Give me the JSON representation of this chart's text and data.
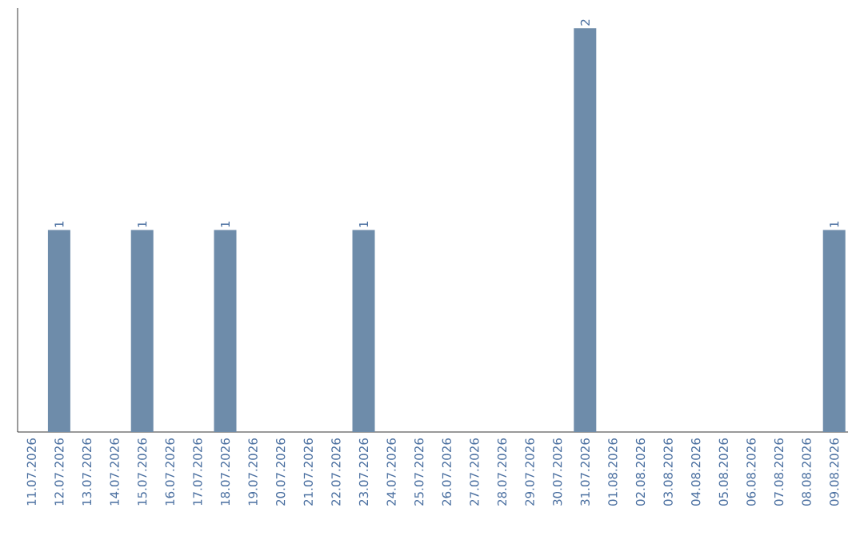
{
  "chart_data": {
    "type": "bar",
    "categories": [
      "11.07.2026",
      "12.07.2026",
      "13.07.2026",
      "14.07.2026",
      "15.07.2026",
      "16.07.2026",
      "17.07.2026",
      "18.07.2026",
      "19.07.2026",
      "20.07.2026",
      "21.07.2026",
      "22.07.2026",
      "23.07.2026",
      "24.07.2026",
      "25.07.2026",
      "26.07.2026",
      "27.07.2026",
      "28.07.2026",
      "29.07.2026",
      "30.07.2026",
      "31.07.2026",
      "01.08.2026",
      "02.08.2026",
      "03.08.2026",
      "04.08.2026",
      "05.08.2026",
      "06.08.2026",
      "07.08.2026",
      "08.08.2026",
      "09.08.2026"
    ],
    "values": [
      0,
      1,
      0,
      0,
      1,
      0,
      0,
      1,
      0,
      0,
      0,
      0,
      1,
      0,
      0,
      0,
      0,
      0,
      0,
      0,
      2,
      0,
      0,
      0,
      0,
      0,
      0,
      0,
      0,
      1
    ],
    "value_labels": [
      null,
      "1",
      null,
      null,
      "1",
      null,
      null,
      "1",
      null,
      null,
      null,
      null,
      "1",
      null,
      null,
      null,
      null,
      null,
      null,
      null,
      "2",
      null,
      null,
      null,
      null,
      null,
      null,
      null,
      null,
      "1"
    ],
    "color": "#6e8caa",
    "ylim": [
      0,
      2.1
    ],
    "tick_labels": "x"
  }
}
